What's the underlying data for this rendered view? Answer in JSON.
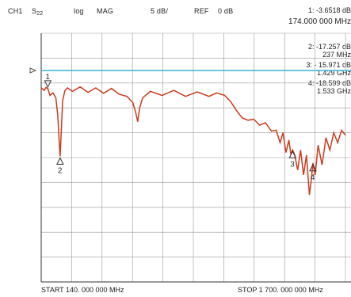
{
  "header": {
    "channel": "CH1",
    "param_base": "S",
    "param_sub": "22",
    "format": "log",
    "mode": "MAG",
    "scale": "5  dB/",
    "ref": "REF",
    "ref_value": "0  dB"
  },
  "markers": {
    "active_readout": "1: -3.6518 dB",
    "active_freq": "174.000 000 MHz",
    "list": [
      {
        "id": "2",
        "line1": "2:  -17.257 dB",
        "line2": "237 MHz"
      },
      {
        "id": "3",
        "line1": "3:  - 15.971 dB",
        "line2": "1.429 GHz"
      },
      {
        "id": "4",
        "line1": "4:  -18.599 dB",
        "line2": "1.533 GHz"
      }
    ],
    "labels": [
      "1",
      "2",
      "3",
      "4"
    ]
  },
  "footer": {
    "start": "START  140. 000 000 MHz",
    "stop": "STOP   1 700. 000 000 MHz"
  },
  "colors": {
    "trace": "#cc3b1e",
    "ref_line": "#38b6d1",
    "grid": "#9a9a9a",
    "frame": "#333333"
  },
  "chart_data": {
    "type": "line",
    "x_start_mhz": 140,
    "x_stop_mhz": 1700,
    "ylabel": "log MAG",
    "y_scale_db_per_div": 5,
    "y_ref_db": 0,
    "series": [
      {
        "x": [
          140,
          155,
          165,
          174,
          185,
          200,
          215,
          225,
          232,
          237,
          242,
          250,
          262,
          275,
          300,
          340,
          380,
          420,
          460,
          500,
          540,
          580,
          610,
          625,
          635,
          645,
          660,
          700,
          760,
          820,
          880,
          940,
          1000,
          1040,
          1080,
          1110,
          1140,
          1170,
          1200,
          1230,
          1260,
          1290,
          1320,
          1345,
          1365,
          1380,
          1395,
          1410,
          1420,
          1429,
          1440,
          1455,
          1470,
          1485,
          1500,
          1515,
          1525,
          1533,
          1545,
          1560,
          1580,
          1600,
          1620,
          1640,
          1660,
          1680,
          1700
        ],
        "y": [
          -3.5,
          -4.0,
          -3.4,
          -3.65,
          -5.0,
          -4.5,
          -5.5,
          -9.0,
          -14.0,
          -17.26,
          -13.0,
          -6.0,
          -4.0,
          -3.5,
          -4.2,
          -3.3,
          -4.4,
          -3.5,
          -4.6,
          -3.6,
          -4.8,
          -5.2,
          -6.5,
          -8.5,
          -10.3,
          -7.5,
          -5.5,
          -4.2,
          -5.0,
          -4.0,
          -5.2,
          -4.3,
          -5.2,
          -4.5,
          -5.0,
          -6.2,
          -8.0,
          -9.5,
          -10.0,
          -9.8,
          -11.0,
          -10.5,
          -12.2,
          -12.0,
          -14.5,
          -12.5,
          -16.5,
          -14.0,
          -16.8,
          -15.97,
          -17.0,
          -20.0,
          -16.0,
          -21.0,
          -17.0,
          -25.0,
          -22.0,
          -18.6,
          -21.0,
          -15.0,
          -19.0,
          -13.5,
          -16.0,
          -12.5,
          -14.5,
          -12.0,
          -13.0
        ]
      }
    ]
  }
}
